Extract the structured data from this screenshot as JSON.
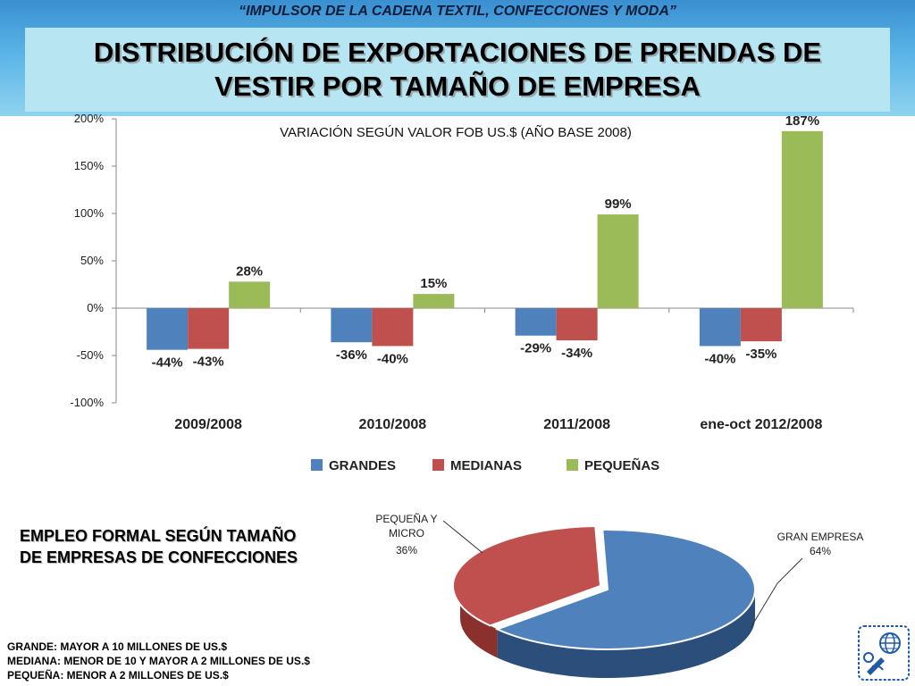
{
  "header": {
    "supertitle": "“IMPULSOR DE LA CADENA TEXTIL, CONFECCIONES Y MODA”",
    "title_line1": "DISTRIBUCIÓN DE EXPORTACIONES DE PRENDAS DE",
    "title_line2": "VESTIR POR TAMAÑO DE EMPRESA"
  },
  "colors": {
    "grandes": "#4f81bd",
    "medianas": "#c0504d",
    "pequenas": "#9bbb59",
    "band": "#58b4e6",
    "titlebox": "#b7e6f2"
  },
  "chart_data": [
    {
      "type": "bar",
      "title": "VARIACIÓN SEGÚN VALOR FOB US.$ (AÑO BASE 2008)",
      "categories": [
        "2009/2008",
        "2010/2008",
        "2011/2008",
        "ene-oct 2012/2008"
      ],
      "series": [
        {
          "name": "GRANDES",
          "values": [
            -44,
            -36,
            -29,
            -40
          ],
          "labels": [
            "-44%",
            "-36%",
            "-29%",
            "-40%"
          ]
        },
        {
          "name": "MEDIANAS",
          "values": [
            -43,
            -40,
            -34,
            -35
          ],
          "labels": [
            "-43%",
            "-40%",
            "-34%",
            "-35%"
          ]
        },
        {
          "name": "PEQUEÑAS",
          "values": [
            28,
            15,
            99,
            187
          ],
          "labels": [
            "28%",
            "15%",
            "99%",
            "187%"
          ]
        }
      ],
      "yticks": [
        "200%",
        "150%",
        "100%",
        "50%",
        "0%",
        "-50%",
        "-100%"
      ],
      "ylim": [
        -100,
        200
      ],
      "legend_position": "bottom"
    },
    {
      "type": "pie",
      "title": "",
      "slices": [
        {
          "label": "GRAN EMPRESA",
          "value": 64,
          "value_label": "64%"
        },
        {
          "label_lines": [
            "PEQUEÑA Y",
            "MICRO"
          ],
          "value": 36,
          "value_label": "36%"
        }
      ]
    }
  ],
  "section": {
    "employment_line1": "EMPLEO FORMAL SEGÚN TAMAÑO",
    "employment_line2": "DE EMPRESAS DE CONFECCIONES"
  },
  "notes": [
    "GRANDE: MAYOR A 10 MILLONES DE US.$",
    "MEDIANA: MENOR DE 10 Y MAYOR A 2 MILLONES DE US.$",
    "PEQUEÑA: MENOR A 2 MILLONES DE US.$"
  ],
  "logo_icon": "globe-hanger-logo-icon"
}
